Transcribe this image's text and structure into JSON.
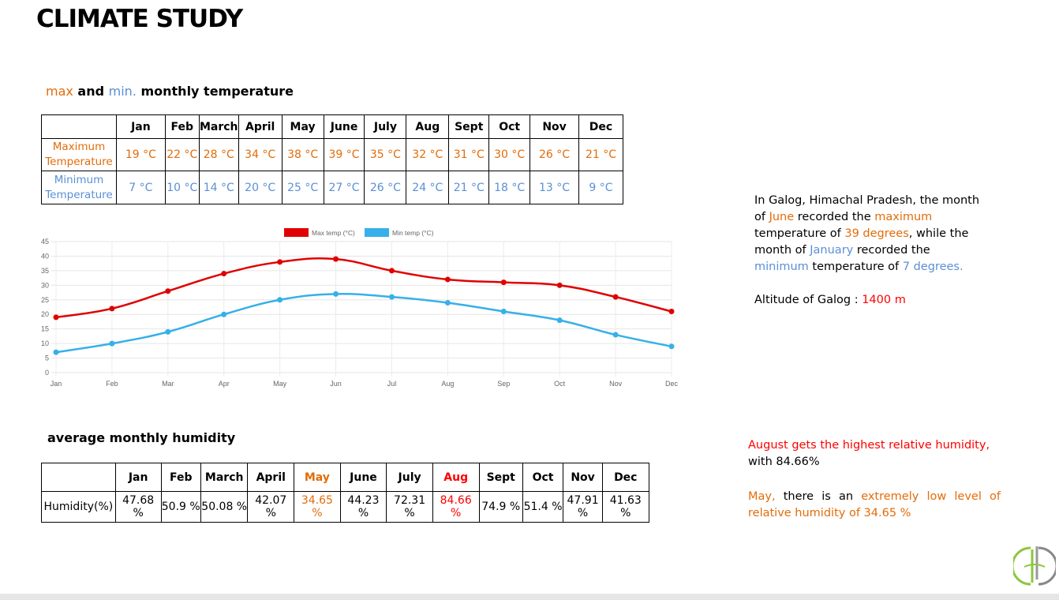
{
  "title": "CLIMATE STUDY",
  "temp_section": {
    "title_max": "max",
    "title_and": " and ",
    "title_min": "min.",
    "title_rest": " monthly temperature"
  },
  "months": [
    "Jan",
    "Feb",
    "March",
    "April",
    "May",
    "June",
    "July",
    "Aug",
    "Sept",
    "Oct",
    "Nov",
    "Dec"
  ],
  "temp_table": {
    "max_label": "Maximum Temperature",
    "min_label": "Minimum Temperature",
    "max": [
      "19 °C",
      "22 °C",
      "28 °C",
      "34 °C",
      "38 °C",
      "39 °C",
      "35 °C",
      "32 °C",
      "31 °C",
      "30 °C",
      "26 °C",
      "21 °C"
    ],
    "min": [
      "7 °C",
      "10 °C",
      "14 °C",
      "20 °C",
      "25 °C",
      "27 °C",
      "26 °C",
      "24 °C",
      "21 °C",
      "18 °C",
      "13 °C",
      "9 °C"
    ]
  },
  "chart_data": {
    "type": "line",
    "categories": [
      "Jan",
      "Feb",
      "Mar",
      "Apr",
      "May",
      "Jun",
      "Jul",
      "Aug",
      "Sep",
      "Oct",
      "Nov",
      "Dec"
    ],
    "series": [
      {
        "name": "Max temp (°C)",
        "color": "#e00000",
        "values": [
          19,
          22,
          28,
          34,
          38,
          39,
          35,
          32,
          31,
          30,
          26,
          21
        ]
      },
      {
        "name": "Min temp (°C)",
        "color": "#36b0e8",
        "values": [
          7,
          10,
          14,
          20,
          25,
          27,
          26,
          24,
          21,
          18,
          13,
          9
        ]
      }
    ],
    "ylim": [
      0,
      45
    ],
    "yticks": [
      0,
      5,
      10,
      15,
      20,
      25,
      30,
      35,
      40,
      45
    ],
    "grid": true,
    "legend": "top-center"
  },
  "temp_note": {
    "p1": "In Galog, Himachal Pradesh, the month of ",
    "june": "June",
    "p2": " recorded the ",
    "maximum": "maximum",
    "p3": " temperature of ",
    "deg39": "39 degrees",
    "p4": ", while the month of ",
    "january": "January",
    "p5": " recorded the ",
    "minimum": "minimum",
    "p6": " temperature of ",
    "deg7": "7 degrees.",
    "altitude_label": "Altitude of Galog : ",
    "altitude_value": "1400 m"
  },
  "humidity_section": {
    "title": "average monthly humidity",
    "row_label": "Humidity(%)",
    "values": [
      "47.68 %",
      "50.9 %",
      "50.08 %",
      "42.07 %",
      "34.65 %",
      "44.23 %",
      "72.31 %",
      "84.66 %",
      "74.9 %",
      "51.4 %",
      "47.91 %",
      "41.63 %"
    ]
  },
  "humidity_note": {
    "high1": "August gets the highest relative humidity,",
    "high2": "with 84.66%",
    "low_may": "May,",
    "low_mid": " there is an ",
    "low_rest": "extremely low level of relative humidity of 34.65 %"
  },
  "colors": {
    "orange": "#e36c09",
    "blue": "#5b8fd6",
    "red": "#ff0000"
  }
}
